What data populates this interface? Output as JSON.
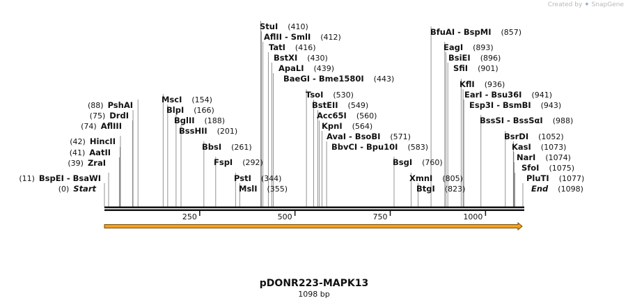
{
  "credit": {
    "prefix": "Created by",
    "brand": "SnapGene"
  },
  "plasmid": {
    "name": "pDONR223-MAPK13",
    "length_label": "1098 bp"
  },
  "ruler": {
    "ticks": [
      250,
      500,
      750,
      1000
    ],
    "length_bp": 1098
  },
  "sites": [
    {
      "id": "start",
      "name": "Start",
      "pos": 0,
      "label": "(0)",
      "italic": true
    },
    {
      "id": "bspei",
      "name": "BspEI  -  BsaWI",
      "pos": 11,
      "label": "(11)"
    },
    {
      "id": "zrai",
      "name": "ZraI",
      "pos": 39,
      "label": "(39)"
    },
    {
      "id": "aatii",
      "name": "AatII",
      "pos": 41,
      "label": "(41)"
    },
    {
      "id": "hincii",
      "name": "HincII",
      "pos": 42,
      "label": "(42)"
    },
    {
      "id": "afliii",
      "name": "AflIII",
      "pos": 74,
      "label": "(74)"
    },
    {
      "id": "drdi",
      "name": "DrdI",
      "pos": 75,
      "label": "(75)"
    },
    {
      "id": "pshai",
      "name": "PshAI",
      "pos": 88,
      "label": "(88)"
    },
    {
      "id": "msci",
      "name": "MscI",
      "pos": 154,
      "label": "(154)"
    },
    {
      "id": "blpi",
      "name": "BlpI",
      "pos": 166,
      "label": "(166)"
    },
    {
      "id": "bglii",
      "name": "BglII",
      "pos": 188,
      "label": "(188)"
    },
    {
      "id": "busshii",
      "name": "BssHII",
      "pos": 201,
      "label": "(201)"
    },
    {
      "id": "bbsi",
      "name": "BbsI",
      "pos": 261,
      "label": "(261)"
    },
    {
      "id": "fspi",
      "name": "FspI",
      "pos": 292,
      "label": "(292)"
    },
    {
      "id": "psti",
      "name": "PstI",
      "pos": 344,
      "label": "(344)"
    },
    {
      "id": "msli",
      "name": "MslI",
      "pos": 355,
      "label": "(355)"
    },
    {
      "id": "stui",
      "name": "StuI",
      "pos": 410,
      "label": "(410)"
    },
    {
      "id": "afliii2",
      "name": "AflII  -  SmlI",
      "pos": 412,
      "label": "(412)"
    },
    {
      "id": "tati",
      "name": "TatI",
      "pos": 416,
      "label": "(416)"
    },
    {
      "id": "bstxi",
      "name": "BstXI",
      "pos": 430,
      "label": "(430)"
    },
    {
      "id": "apali",
      "name": "ApaLI",
      "pos": 439,
      "label": "(439)"
    },
    {
      "id": "baegi",
      "name": "BaeGI  -  Bme1580I",
      "pos": 443,
      "label": "(443)"
    },
    {
      "id": "tsoi",
      "name": "TsoI",
      "pos": 530,
      "label": "(530)"
    },
    {
      "id": "bsteii",
      "name": "BstEII",
      "pos": 549,
      "label": "(549)"
    },
    {
      "id": "acc65i",
      "name": "Acc65I",
      "pos": 560,
      "label": "(560)"
    },
    {
      "id": "kpni",
      "name": "KpnI",
      "pos": 564,
      "label": "(564)"
    },
    {
      "id": "avai",
      "name": "AvaI  -  BsoBI",
      "pos": 571,
      "label": "(571)"
    },
    {
      "id": "bbvci",
      "name": "BbvCI  -  Bpu10I",
      "pos": 583,
      "label": "(583)"
    },
    {
      "id": "bsgi",
      "name": "BsgI",
      "pos": 760,
      "label": "(760)"
    },
    {
      "id": "xmni",
      "name": "XmnI",
      "pos": 805,
      "label": "(805)"
    },
    {
      "id": "btgi",
      "name": "BtgI",
      "pos": 823,
      "label": "(823)"
    },
    {
      "id": "bfuai",
      "name": "BfuAI  -  BspMI",
      "pos": 857,
      "label": "(857)"
    },
    {
      "id": "eagi",
      "name": "EagI",
      "pos": 893,
      "label": "(893)"
    },
    {
      "id": "bsiei",
      "name": "BsiEI",
      "pos": 896,
      "label": "(896)"
    },
    {
      "id": "sfii",
      "name": "SfiI",
      "pos": 901,
      "label": "(901)"
    },
    {
      "id": "kfli",
      "name": "KflI",
      "pos": 936,
      "label": "(936)"
    },
    {
      "id": "eari",
      "name": "EarI  -  Bsu36I",
      "pos": 941,
      "label": "(941)"
    },
    {
      "id": "esp3i",
      "name": "Esp3I  -  BsmBI",
      "pos": 943,
      "label": "(943)"
    },
    {
      "id": "bsssi",
      "name": "BssSI  -  BssSαI",
      "pos": 988,
      "label": "(988)"
    },
    {
      "id": "bsrdi",
      "name": "BsrDI",
      "pos": 1052,
      "label": "(1052)"
    },
    {
      "id": "kasi",
      "name": "KasI",
      "pos": 1073,
      "label": "(1073)"
    },
    {
      "id": "nari",
      "name": "NarI",
      "pos": 1074,
      "label": "(1074)"
    },
    {
      "id": "sfoi",
      "name": "SfoI",
      "pos": 1075,
      "label": "(1075)"
    },
    {
      "id": "pluti",
      "name": "PluTI",
      "pos": 1077,
      "label": "(1077)"
    },
    {
      "id": "end",
      "name": "End",
      "pos": 1098,
      "label": "(1098)",
      "italic": true
    }
  ],
  "colors": {
    "feature_arrow": "#f4a21c",
    "feature_outline": "#7a4a00",
    "backbone": "#111111"
  }
}
